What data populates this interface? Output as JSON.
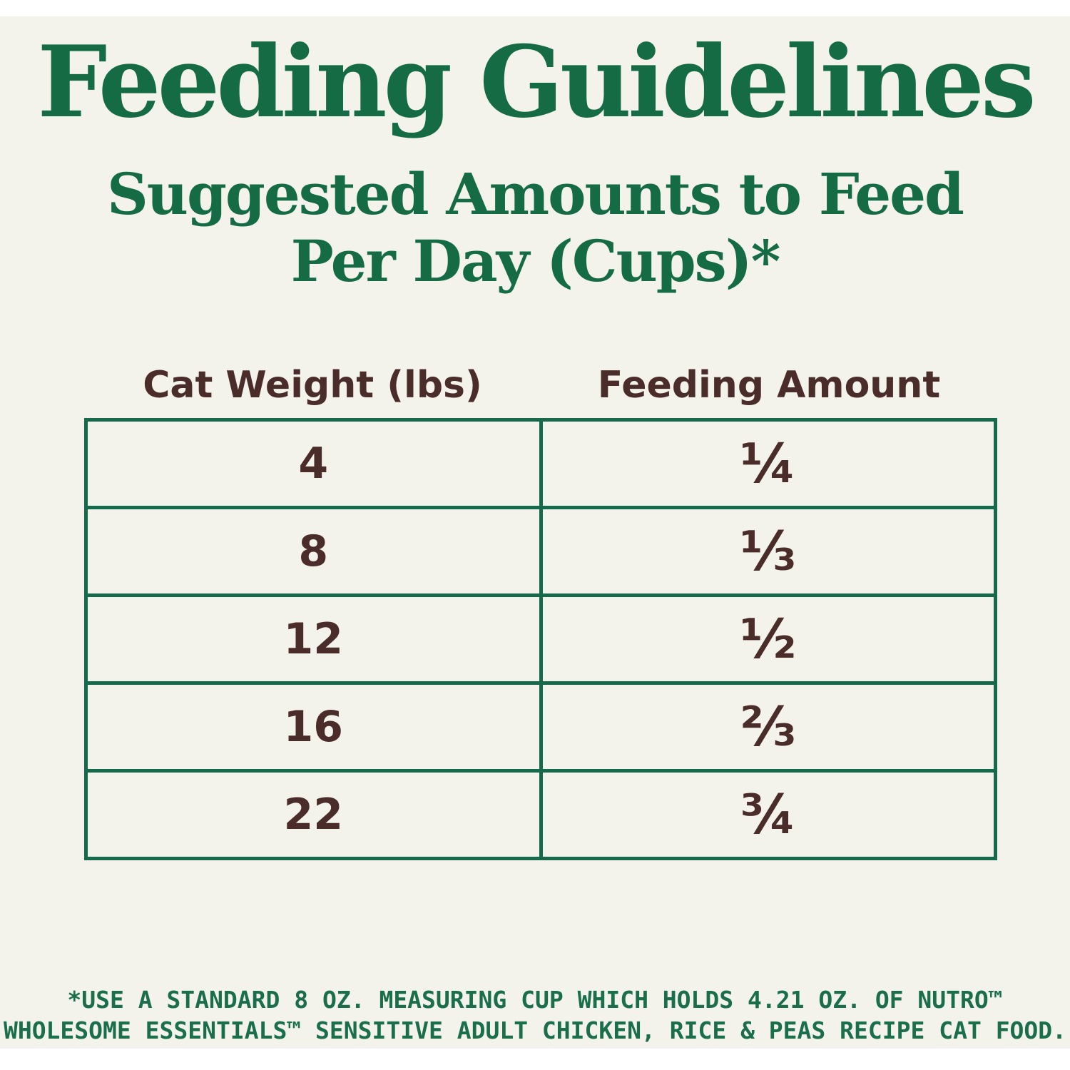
{
  "page": {
    "title": "Feeding Guidelines",
    "subtitle_line1": "Suggested Amounts to Feed",
    "subtitle_line2": "Per Day (Cups)*"
  },
  "table": {
    "col1_header": "Cat Weight (lbs)",
    "col2_header": "Feeding Amount",
    "rows": [
      {
        "weight": "4",
        "amount": "¼"
      },
      {
        "weight": "8",
        "amount": "⅓"
      },
      {
        "weight": "12",
        "amount": "½"
      },
      {
        "weight": "16",
        "amount": "⅔"
      },
      {
        "weight": "22",
        "amount": "¾"
      }
    ]
  },
  "footnote": {
    "line1": "*USE A STANDARD 8 OZ. MEASURING CUP WHICH HOLDS 4.21 OZ. OF NUTRO™",
    "line2": "WHOLESOME ESSENTIALS™ SENSITIVE ADULT CHICKEN, RICE & PEAS RECIPE CAT FOOD."
  },
  "colors": {
    "heading_green": "#146b44",
    "border_green": "#17694b",
    "text_brown": "#4a2c2b",
    "background_cream": "#f3f3eb",
    "outer_white": "#ffffff"
  }
}
